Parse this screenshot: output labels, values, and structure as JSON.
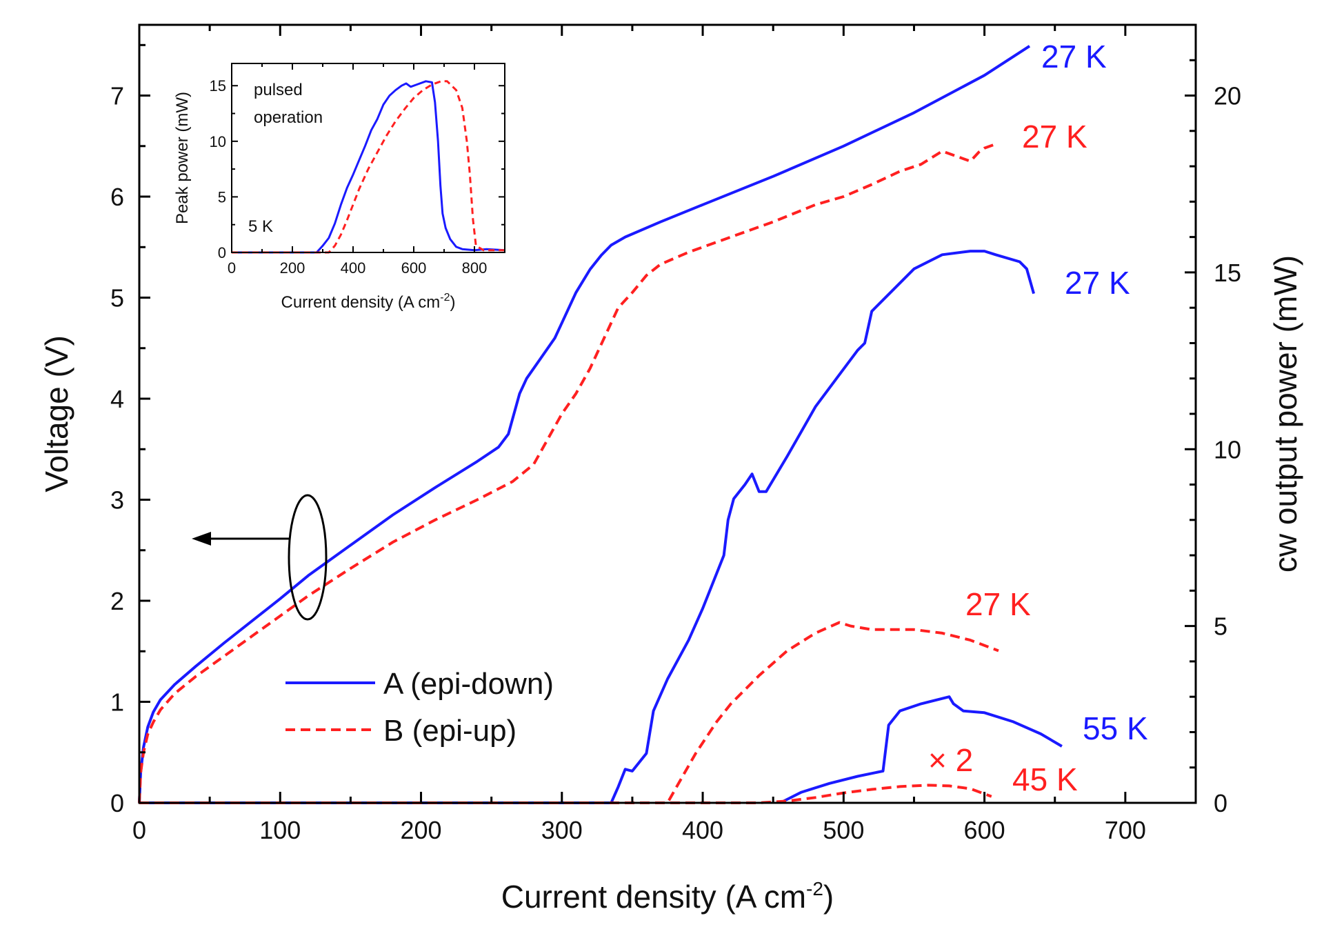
{
  "chart_data": {
    "type": "line",
    "xlabel": "Current density (A cm",
    "xlabel_sup": "-2",
    "xlabel_close": ")",
    "ylabel_left": "Voltage (V)",
    "ylabel_right": "cw output power (mW)",
    "xlim": [
      0,
      750
    ],
    "ylim_left": [
      0,
      7.7
    ],
    "ylim_right": [
      0,
      22
    ],
    "x_ticks": [
      "0",
      "100",
      "200",
      "300",
      "400",
      "500",
      "600",
      "700"
    ],
    "y_left_ticks": [
      "0",
      "1",
      "2",
      "3",
      "4",
      "5",
      "6",
      "7"
    ],
    "y_right_ticks": [
      "0",
      "5",
      "10",
      "15",
      "20"
    ],
    "colors": {
      "A": "#1a1aff",
      "B": "#ff2020"
    },
    "legend": {
      "position": "bottom-left",
      "entries": [
        {
          "label": "A (epi-down)",
          "style": "solid",
          "color": "#1a1aff"
        },
        {
          "label": "B (epi-up)",
          "style": "dashed",
          "color": "#ff2020"
        }
      ]
    },
    "series": [
      {
        "name": "A (epi-down)",
        "axis": "left",
        "style": "solid",
        "color": "#1a1aff",
        "points": [
          [
            0,
            0
          ],
          [
            1,
            0.3
          ],
          [
            3,
            0.55
          ],
          [
            6,
            0.75
          ],
          [
            10,
            0.9
          ],
          [
            15,
            1.02
          ],
          [
            25,
            1.17
          ],
          [
            40,
            1.35
          ],
          [
            60,
            1.58
          ],
          [
            80,
            1.8
          ],
          [
            100,
            2.02
          ],
          [
            120,
            2.25
          ],
          [
            150,
            2.55
          ],
          [
            180,
            2.85
          ],
          [
            210,
            3.12
          ],
          [
            240,
            3.38
          ],
          [
            255,
            3.52
          ],
          [
            262,
            3.65
          ],
          [
            265,
            3.8
          ],
          [
            270,
            4.05
          ],
          [
            275,
            4.2
          ],
          [
            285,
            4.4
          ],
          [
            295,
            4.6
          ],
          [
            300,
            4.75
          ],
          [
            310,
            5.05
          ],
          [
            320,
            5.28
          ],
          [
            328,
            5.42
          ],
          [
            335,
            5.52
          ],
          [
            345,
            5.6
          ],
          [
            370,
            5.75
          ],
          [
            400,
            5.92
          ],
          [
            450,
            6.2
          ],
          [
            500,
            6.5
          ],
          [
            550,
            6.83
          ],
          [
            600,
            7.2
          ],
          [
            632,
            7.49
          ]
        ]
      },
      {
        "name": "B (epi-up)",
        "axis": "left",
        "style": "dashed",
        "color": "#ff2020",
        "points": [
          [
            0,
            0
          ],
          [
            1,
            0.3
          ],
          [
            3,
            0.5
          ],
          [
            6,
            0.68
          ],
          [
            10,
            0.8
          ],
          [
            15,
            0.92
          ],
          [
            25,
            1.08
          ],
          [
            40,
            1.25
          ],
          [
            60,
            1.45
          ],
          [
            80,
            1.65
          ],
          [
            100,
            1.85
          ],
          [
            120,
            2.05
          ],
          [
            150,
            2.32
          ],
          [
            180,
            2.58
          ],
          [
            210,
            2.8
          ],
          [
            240,
            3.0
          ],
          [
            265,
            3.18
          ],
          [
            280,
            3.35
          ],
          [
            290,
            3.6
          ],
          [
            300,
            3.85
          ],
          [
            310,
            4.05
          ],
          [
            320,
            4.3
          ],
          [
            330,
            4.6
          ],
          [
            340,
            4.9
          ],
          [
            350,
            5.05
          ],
          [
            360,
            5.22
          ],
          [
            370,
            5.33
          ],
          [
            390,
            5.45
          ],
          [
            420,
            5.6
          ],
          [
            450,
            5.75
          ],
          [
            480,
            5.92
          ],
          [
            500,
            6.0
          ],
          [
            520,
            6.12
          ],
          [
            540,
            6.25
          ],
          [
            555,
            6.32
          ],
          [
            570,
            6.45
          ],
          [
            580,
            6.4
          ],
          [
            590,
            6.35
          ],
          [
            596,
            6.44
          ],
          [
            600,
            6.48
          ],
          [
            608,
            6.52
          ]
        ]
      },
      {
        "name": "A 27 K cw",
        "axis": "right",
        "style": "solid",
        "color": "#1a1aff",
        "points": [
          [
            0,
            0
          ],
          [
            335,
            0
          ],
          [
            340,
            0.45
          ],
          [
            345,
            0.95
          ],
          [
            350,
            0.9
          ],
          [
            360,
            1.4
          ],
          [
            365,
            2.6
          ],
          [
            375,
            3.5
          ],
          [
            390,
            4.6
          ],
          [
            400,
            5.5
          ],
          [
            410,
            6.5
          ],
          [
            415,
            7.0
          ],
          [
            418,
            8.0
          ],
          [
            422,
            8.6
          ],
          [
            430,
            9.0
          ],
          [
            435,
            9.3
          ],
          [
            440,
            8.8
          ],
          [
            445,
            8.8
          ],
          [
            460,
            9.8
          ],
          [
            470,
            10.5
          ],
          [
            480,
            11.2
          ],
          [
            495,
            12.0
          ],
          [
            510,
            12.8
          ],
          [
            515,
            13.0
          ],
          [
            520,
            13.9
          ],
          [
            530,
            14.3
          ],
          [
            550,
            15.1
          ],
          [
            570,
            15.5
          ],
          [
            590,
            15.6
          ],
          [
            600,
            15.6
          ],
          [
            608,
            15.5
          ],
          [
            625,
            15.3
          ],
          [
            630,
            15.1
          ],
          [
            635,
            14.4
          ]
        ]
      },
      {
        "name": "B 27 K cw",
        "axis": "right",
        "style": "dashed",
        "color": "#ff2020",
        "points": [
          [
            0,
            0
          ],
          [
            375,
            0
          ],
          [
            385,
            0.7
          ],
          [
            395,
            1.4
          ],
          [
            410,
            2.3
          ],
          [
            420,
            2.8
          ],
          [
            440,
            3.6
          ],
          [
            460,
            4.3
          ],
          [
            480,
            4.8
          ],
          [
            497,
            5.1
          ],
          [
            505,
            5.0
          ],
          [
            520,
            4.9
          ],
          [
            550,
            4.9
          ],
          [
            570,
            4.8
          ],
          [
            590,
            4.6
          ],
          [
            610,
            4.3
          ]
        ]
      },
      {
        "name": "A 55 K cw",
        "axis": "right",
        "style": "solid",
        "color": "#1a1aff",
        "points": [
          [
            455,
            0
          ],
          [
            470,
            0.3
          ],
          [
            490,
            0.55
          ],
          [
            510,
            0.75
          ],
          [
            528,
            0.9
          ],
          [
            532,
            2.2
          ],
          [
            540,
            2.6
          ],
          [
            555,
            2.8
          ],
          [
            575,
            3.0
          ],
          [
            578,
            2.8
          ],
          [
            585,
            2.6
          ],
          [
            600,
            2.55
          ],
          [
            620,
            2.3
          ],
          [
            640,
            1.95
          ],
          [
            655,
            1.6
          ]
        ]
      },
      {
        "name": "B 45 K cw (x2)",
        "axis": "right",
        "style": "dashed",
        "color": "#ff2020",
        "points": [
          [
            0,
            0
          ],
          [
            440,
            0
          ],
          [
            460,
            0.05
          ],
          [
            480,
            0.15
          ],
          [
            500,
            0.28
          ],
          [
            520,
            0.38
          ],
          [
            540,
            0.46
          ],
          [
            560,
            0.5
          ],
          [
            575,
            0.48
          ],
          [
            590,
            0.4
          ],
          [
            605,
            0.18
          ]
        ]
      }
    ],
    "annotations": [
      {
        "text": "27 K",
        "color": "#1a1aff"
      },
      {
        "text": "27 K",
        "color": "#ff2020"
      },
      {
        "text": "27 K",
        "color": "#1a1aff"
      },
      {
        "text": "27 K",
        "color": "#ff2020"
      },
      {
        "text": "55 K",
        "color": "#1a1aff"
      },
      {
        "text": "45 K",
        "color": "#ff2020"
      },
      {
        "text": "× 2",
        "color": "#ff2020"
      }
    ],
    "inset": {
      "type": "line",
      "xlabel": "Current density (A cm",
      "xlabel_sup": "-2",
      "xlabel_close": ")",
      "ylabel": "Peak power (mW)",
      "xlim": [
        0,
        900
      ],
      "ylim": [
        0,
        17
      ],
      "x_ticks": [
        "0",
        "200",
        "400",
        "600",
        "800"
      ],
      "y_ticks": [
        "0",
        "5",
        "10",
        "15"
      ],
      "text_pulsed": "pulsed",
      "text_operation": "operation",
      "text_temp": "5 K",
      "series": [
        {
          "name": "A (epi-down)",
          "style": "solid",
          "color": "#1a1aff",
          "points": [
            [
              0,
              0
            ],
            [
              280,
              0
            ],
            [
              300,
              0.6
            ],
            [
              320,
              1.3
            ],
            [
              340,
              2.6
            ],
            [
              360,
              4.3
            ],
            [
              380,
              5.8
            ],
            [
              400,
              7.0
            ],
            [
              420,
              8.3
            ],
            [
              440,
              9.6
            ],
            [
              460,
              11.0
            ],
            [
              480,
              12.0
            ],
            [
              500,
              13.3
            ],
            [
              520,
              14.1
            ],
            [
              540,
              14.6
            ],
            [
              560,
              15.0
            ],
            [
              575,
              15.2
            ],
            [
              590,
              14.9
            ],
            [
              610,
              15.1
            ],
            [
              640,
              15.4
            ],
            [
              660,
              15.3
            ],
            [
              670,
              13.5
            ],
            [
              680,
              10.0
            ],
            [
              688,
              6.0
            ],
            [
              695,
              3.5
            ],
            [
              705,
              2.2
            ],
            [
              720,
              1.2
            ],
            [
              740,
              0.5
            ],
            [
              760,
              0.3
            ],
            [
              800,
              0.2
            ],
            [
              840,
              0.3
            ],
            [
              900,
              0.2
            ]
          ]
        },
        {
          "name": "B (epi-up)",
          "style": "dashed",
          "color": "#ff2020",
          "points": [
            [
              0,
              0
            ],
            [
              320,
              0
            ],
            [
              340,
              0.6
            ],
            [
              360,
              1.6
            ],
            [
              380,
              2.9
            ],
            [
              400,
              4.3
            ],
            [
              420,
              5.7
            ],
            [
              450,
              7.5
            ],
            [
              480,
              9.0
            ],
            [
              510,
              10.5
            ],
            [
              540,
              11.8
            ],
            [
              570,
              12.9
            ],
            [
              600,
              13.9
            ],
            [
              630,
              14.6
            ],
            [
              660,
              15.1
            ],
            [
              690,
              15.4
            ],
            [
              710,
              15.4
            ],
            [
              740,
              14.6
            ],
            [
              760,
              13.0
            ],
            [
              775,
              10.0
            ],
            [
              785,
              7.0
            ],
            [
              795,
              3.0
            ],
            [
              805,
              0.6
            ],
            [
              830,
              0.2
            ],
            [
              900,
              0.2
            ]
          ]
        }
      ]
    }
  }
}
